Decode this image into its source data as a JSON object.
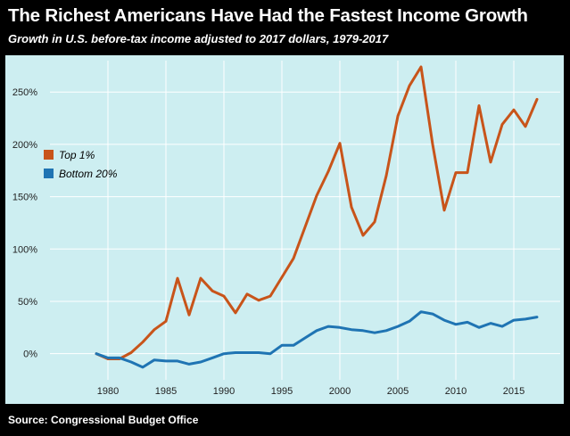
{
  "header": {
    "title": "The Richest Americans Have Had the Fastest Income Growth",
    "subtitle": "Growth in U.S. before-tax income adjusted to 2017 dollars, 1979-2017"
  },
  "footer": {
    "source": "Source: Congressional Budget Office"
  },
  "colors": {
    "background": "#cdeef1",
    "frame": "#000000",
    "grid": "#ffffff",
    "top1": "#c8541a",
    "bottom20": "#1f74b3"
  },
  "chart_data": {
    "type": "line",
    "title": "The Richest Americans Have Had the Fastest Income Growth",
    "subtitle": "Growth in U.S. before-tax income adjusted to 2017 dollars, 1979-2017",
    "xlabel": "",
    "ylabel": "",
    "xlim": [
      1975,
      2019
    ],
    "ylim": [
      -25,
      280
    ],
    "x_ticks": [
      1980,
      1985,
      1990,
      1995,
      2000,
      2005,
      2010,
      2015
    ],
    "x_tick_labels": [
      "1980",
      "1985",
      "1990",
      "1995",
      "2000",
      "2005",
      "2010",
      "2015"
    ],
    "y_ticks": [
      0,
      50,
      100,
      150,
      200,
      250
    ],
    "y_tick_labels": [
      "0%",
      "50%",
      "100%",
      "150%",
      "200%",
      "250%"
    ],
    "grid": true,
    "legend_position": "left",
    "x": [
      1979,
      1980,
      1981,
      1982,
      1983,
      1984,
      1985,
      1986,
      1987,
      1988,
      1989,
      1990,
      1991,
      1992,
      1993,
      1994,
      1995,
      1996,
      1997,
      1998,
      1999,
      2000,
      2001,
      2002,
      2003,
      2004,
      2005,
      2006,
      2007,
      2008,
      2009,
      2010,
      2011,
      2012,
      2013,
      2014,
      2015,
      2016,
      2017
    ],
    "series": [
      {
        "name": "Top 1%",
        "color": "#c8541a",
        "values": [
          0,
          -5,
          -5,
          1,
          11,
          23,
          31,
          72,
          37,
          72,
          60,
          55,
          39,
          57,
          51,
          55,
          73,
          91,
          121,
          151,
          174,
          201,
          140,
          113,
          126,
          170,
          227,
          256,
          274,
          200,
          137,
          173,
          173,
          237,
          183,
          219,
          233,
          217,
          243
        ]
      },
      {
        "name": "Bottom 20%",
        "color": "#1f74b3",
        "values": [
          0,
          -4,
          -4,
          -8,
          -13,
          -6,
          -7,
          -7,
          -10,
          -8,
          -4,
          0,
          1,
          1,
          1,
          0,
          8,
          8,
          15,
          22,
          26,
          25,
          23,
          22,
          20,
          22,
          26,
          31,
          40,
          38,
          32,
          28,
          30,
          25,
          29,
          26,
          32,
          33,
          35
        ]
      }
    ]
  }
}
